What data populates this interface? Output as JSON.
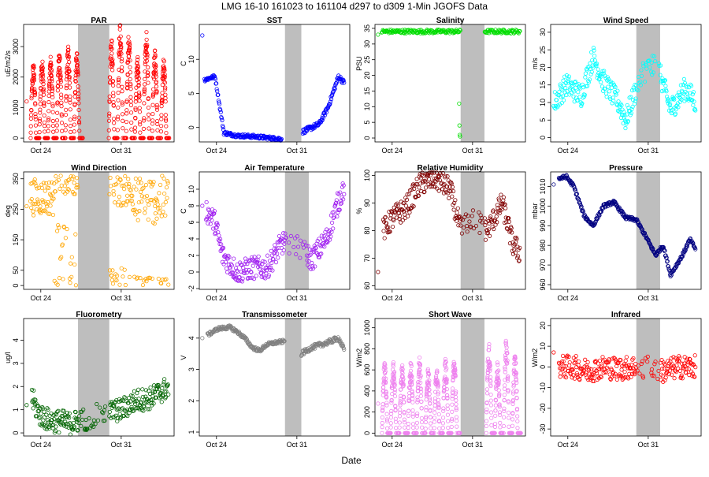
{
  "figure": {
    "title": "LMG   16-10    161023 to 161104    d297 to d309   1-Min  JGOFS Data",
    "xlabel": "Date"
  },
  "chart_data": [
    {
      "type": "scatter",
      "title": "PAR",
      "ylabel": "uE/m2/s",
      "ylim": [
        -100,
        3700
      ],
      "yticks": [
        0,
        1000,
        2000,
        3000
      ],
      "color": "#ff0000",
      "pattern": "diurnal",
      "base": 0,
      "peaks": [
        2400,
        2500,
        2600,
        2800,
        2900,
        2700,
        3000,
        2600,
        2950,
        3200,
        3650,
        3300,
        2600,
        3400,
        2800,
        2500
      ],
      "xticks": [
        "Oct 24",
        "Oct 31"
      ],
      "gap": [
        0.36,
        0.57
      ],
      "data_end": 0.97,
      "start_isolated": 1200
    },
    {
      "type": "scatter",
      "title": "SST",
      "ylabel": "C",
      "ylim": [
        -2,
        15
      ],
      "yticks": [
        0,
        5,
        10
      ],
      "color": "#0000ff",
      "pattern": "series",
      "points": [
        [
          0.03,
          7.0
        ],
        [
          0.1,
          7.5
        ],
        [
          0.16,
          -0.8
        ],
        [
          0.25,
          -1.2
        ],
        [
          0.35,
          -1.3
        ],
        [
          0.5,
          -1.6
        ],
        [
          0.55,
          -1.7
        ]
      ],
      "segment2": [
        [
          0.69,
          -0.6
        ],
        [
          0.8,
          0.5
        ],
        [
          0.86,
          3.0
        ],
        [
          0.93,
          7.5
        ],
        [
          0.97,
          6.5
        ]
      ],
      "xticks": [
        "Oct 24",
        "Oct 31"
      ],
      "gap": [
        0.57,
        0.68
      ],
      "data_end": 0.97,
      "start_isolated": 13.5
    },
    {
      "type": "scatter",
      "title": "Salinity",
      "ylabel": "PSU",
      "ylim": [
        -1,
        36
      ],
      "yticks": [
        0,
        5,
        10,
        15,
        20,
        25,
        30,
        35
      ],
      "color": "#00dd00",
      "pattern": "flat",
      "level": 34,
      "outliers": [
        11,
        4,
        1,
        0.5
      ],
      "xticks": [
        "Oct 24",
        "Oct 31"
      ],
      "gap": [
        0.57,
        0.73
      ],
      "data_end": 0.97,
      "start_isolated": 33
    },
    {
      "type": "scatter",
      "title": "Wind Speed",
      "ylabel": "m/s",
      "ylim": [
        -1,
        32
      ],
      "yticks": [
        0,
        5,
        10,
        15,
        20,
        25,
        30
      ],
      "color": "#00ffff",
      "pattern": "noisy",
      "points": [
        [
          0.02,
          10
        ],
        [
          0.1,
          15
        ],
        [
          0.2,
          12
        ],
        [
          0.28,
          23
        ],
        [
          0.35,
          16
        ],
        [
          0.45,
          10
        ],
        [
          0.5,
          5
        ],
        [
          0.6,
          18
        ],
        [
          0.7,
          22
        ],
        [
          0.8,
          8
        ],
        [
          0.9,
          14
        ],
        [
          0.97,
          10
        ]
      ],
      "xticks": [
        "Oct 24",
        "Oct 31"
      ],
      "gap": [
        0.57,
        0.73
      ],
      "data_end": 0.97,
      "start_isolated": 9
    },
    {
      "type": "scatter",
      "title": "Wind Direction",
      "ylabel": "deg",
      "ylim": [
        -10,
        370
      ],
      "yticks": [
        0,
        50,
        150,
        250,
        350
      ],
      "color": "#ffa500",
      "pattern": "winddir",
      "xticks": [
        "Oct 24",
        "Oct 31"
      ],
      "gap": [
        0.36,
        0.57
      ],
      "data_end": 0.97,
      "start_isolated": 260
    },
    {
      "type": "scatter",
      "title": "Air Temperature",
      "ylabel": "C",
      "ylim": [
        -2,
        12
      ],
      "yticks": [
        -2,
        0,
        2,
        4,
        6,
        8,
        10
      ],
      "color": "#a020f0",
      "pattern": "noisy",
      "points": [
        [
          0.04,
          7.5
        ],
        [
          0.1,
          6
        ],
        [
          0.15,
          2
        ],
        [
          0.25,
          0
        ],
        [
          0.35,
          0.5
        ],
        [
          0.45,
          0.5
        ],
        [
          0.55,
          3.5
        ],
        [
          0.65,
          3
        ],
        [
          0.75,
          1.5
        ],
        [
          0.85,
          4
        ],
        [
          0.92,
          8
        ],
        [
          0.97,
          10.5
        ]
      ],
      "xticks": [
        "Oct 24",
        "Oct 31"
      ],
      "gap": [
        0.57,
        0.73
      ],
      "data_end": 0.97,
      "start_isolated": 8
    },
    {
      "type": "scatter",
      "title": "Relative Humidity",
      "ylabel": "%",
      "ylim": [
        59,
        101
      ],
      "yticks": [
        60,
        70,
        80,
        90,
        100
      ],
      "color": "#800000",
      "pattern": "noisy",
      "points": [
        [
          0.05,
          80
        ],
        [
          0.12,
          85
        ],
        [
          0.2,
          88
        ],
        [
          0.3,
          97
        ],
        [
          0.4,
          99
        ],
        [
          0.5,
          95
        ],
        [
          0.57,
          80
        ],
        [
          0.65,
          85
        ],
        [
          0.75,
          80
        ],
        [
          0.85,
          90
        ],
        [
          0.92,
          75
        ],
        [
          0.97,
          72
        ]
      ],
      "xticks": [
        "Oct 24",
        "Oct 31"
      ],
      "gap": [
        0.57,
        0.73
      ],
      "data_end": 0.97,
      "start_isolated": 65
    },
    {
      "type": "scatter",
      "title": "Pressure",
      "ylabel": "mbar",
      "ylim": [
        958,
        1017
      ],
      "yticks": [
        960,
        970,
        980,
        990,
        1000,
        1010
      ],
      "color": "#000080",
      "pattern": "series",
      "points": [
        [
          0.05,
          1014
        ],
        [
          0.1,
          1015
        ],
        [
          0.15,
          1010
        ],
        [
          0.22,
          995
        ],
        [
          0.28,
          990
        ],
        [
          0.35,
          1000
        ],
        [
          0.42,
          1002
        ],
        [
          0.5,
          994
        ],
        [
          0.57,
          993
        ],
        [
          0.63,
          985
        ],
        [
          0.7,
          975
        ],
        [
          0.75,
          980
        ],
        [
          0.8,
          965
        ],
        [
          0.84,
          970
        ],
        [
          0.88,
          975
        ],
        [
          0.93,
          983
        ],
        [
          0.97,
          978
        ]
      ],
      "xticks": [
        "Oct 24",
        "Oct 31"
      ],
      "gap": [
        0.57,
        0.73
      ],
      "data_end": 0.97,
      "start_isolated": 1011
    },
    {
      "type": "scatter",
      "title": "Fluorometry",
      "ylabel": "ug/l",
      "ylim": [
        -0.1,
        4.9
      ],
      "yticks": [
        0,
        1,
        2,
        3,
        4
      ],
      "color": "#006400",
      "pattern": "noisy",
      "points": [
        [
          0.05,
          1.5
        ],
        [
          0.1,
          0.8
        ],
        [
          0.15,
          0.6
        ],
        [
          0.2,
          0.5
        ],
        [
          0.25,
          0.5
        ],
        [
          0.3,
          0.4
        ],
        [
          0.35,
          0.5
        ],
        [
          0.57,
          0.9
        ],
        [
          0.65,
          1.0
        ],
        [
          0.75,
          1.4
        ],
        [
          0.85,
          1.5
        ],
        [
          0.97,
          2.0
        ]
      ],
      "xticks": [
        "Oct 24",
        "Oct 31"
      ],
      "gap": [
        0.36,
        0.57
      ],
      "data_end": 0.97,
      "start_isolated": 1.2
    },
    {
      "type": "scatter",
      "title": "Transmissometer",
      "ylabel": "V",
      "ylim": [
        0.9,
        4.6
      ],
      "yticks": [
        1.0,
        2.0,
        3.0,
        4.0
      ],
      "color": "#808080",
      "pattern": "series",
      "points": [
        [
          0.05,
          4.1
        ],
        [
          0.12,
          4.3
        ],
        [
          0.2,
          4.35
        ],
        [
          0.25,
          4.2
        ],
        [
          0.3,
          4.0
        ],
        [
          0.35,
          3.7
        ],
        [
          0.4,
          3.6
        ],
        [
          0.45,
          3.8
        ],
        [
          0.5,
          3.85
        ],
        [
          0.57,
          3.9
        ]
      ],
      "segment2": [
        [
          0.68,
          3.5
        ],
        [
          0.75,
          3.7
        ],
        [
          0.85,
          3.85
        ],
        [
          0.93,
          4.0
        ],
        [
          0.97,
          3.6
        ]
      ],
      "xticks": [
        "Oct 24",
        "Oct 31"
      ],
      "gap": [
        0.57,
        0.68
      ],
      "data_end": 0.97,
      "start_isolated": 4.0
    },
    {
      "type": "scatter",
      "title": "Short Wave",
      "ylabel": "W/m2",
      "ylim": [
        -20,
        1080
      ],
      "yticks": [
        0,
        200,
        400,
        600,
        800,
        1000
      ],
      "color": "#ee82ee",
      "pattern": "diurnal",
      "base": 0,
      "peaks": [
        650,
        640,
        620,
        650,
        700,
        600,
        620,
        680,
        700,
        700,
        1030,
        720,
        820,
        650,
        860,
        730
      ],
      "xticks": [
        "Oct 24",
        "Oct 31"
      ],
      "gap": [
        0.57,
        0.73
      ],
      "data_end": 0.97,
      "start_isolated": 280
    },
    {
      "type": "scatter",
      "title": "Infrared",
      "ylabel": "W/m2",
      "ylim": [
        -33,
        23
      ],
      "yticks": [
        -30,
        -20,
        -10,
        0,
        10,
        20
      ],
      "color": "#ff0000",
      "pattern": "noisy",
      "points": [
        [
          0.05,
          0
        ],
        [
          0.15,
          0
        ],
        [
          0.25,
          -2
        ],
        [
          0.35,
          0
        ],
        [
          0.45,
          -1
        ],
        [
          0.55,
          0
        ],
        [
          0.65,
          0
        ],
        [
          0.75,
          -2
        ],
        [
          0.85,
          0
        ],
        [
          0.97,
          0
        ]
      ],
      "xticks": [
        "Oct 24",
        "Oct 31"
      ],
      "gap": [
        0.57,
        0.73
      ],
      "data_end": 0.97,
      "start_isolated": 7
    }
  ]
}
